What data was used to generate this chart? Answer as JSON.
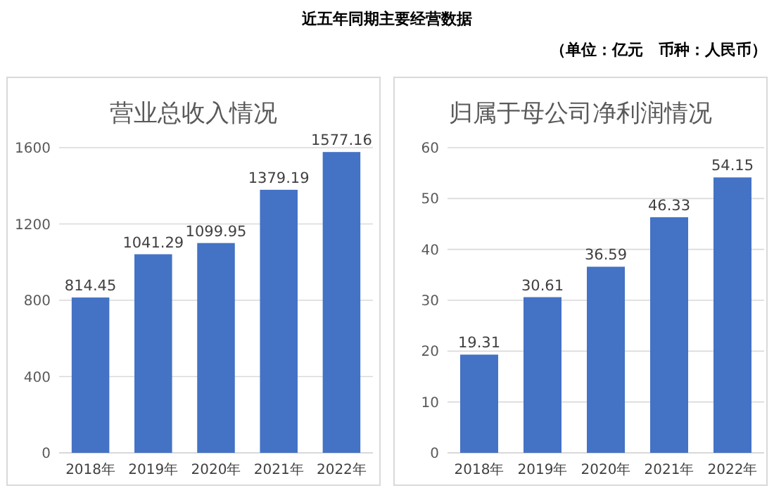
{
  "chart_data": [
    {
      "type": "bar",
      "title": "营业总收入情况",
      "categories": [
        "2018年",
        "2019年",
        "2020年",
        "2021年",
        "2022年"
      ],
      "values": [
        814.45,
        1041.29,
        1099.95,
        1379.19,
        1577.16
      ],
      "color": "#4472c4",
      "ylim": [
        0,
        1600
      ],
      "yticks": [
        0,
        400,
        800,
        1200,
        1600
      ],
      "grid": "y",
      "data_labels": true,
      "annotations": [
        "近五年同期主要经营数据",
        "（单位：亿元　币种：人民币）"
      ]
    },
    {
      "type": "bar",
      "title": "归属于母公司净利润情况",
      "categories": [
        "2018年",
        "2019年",
        "2020年",
        "2021年",
        "2022年"
      ],
      "values": [
        19.31,
        30.61,
        36.59,
        46.33,
        54.15
      ],
      "color": "#4472c4",
      "ylim": [
        0,
        60
      ],
      "yticks": [
        0,
        10,
        20,
        30,
        40,
        50,
        60
      ],
      "grid": "y",
      "data_labels": true
    }
  ]
}
